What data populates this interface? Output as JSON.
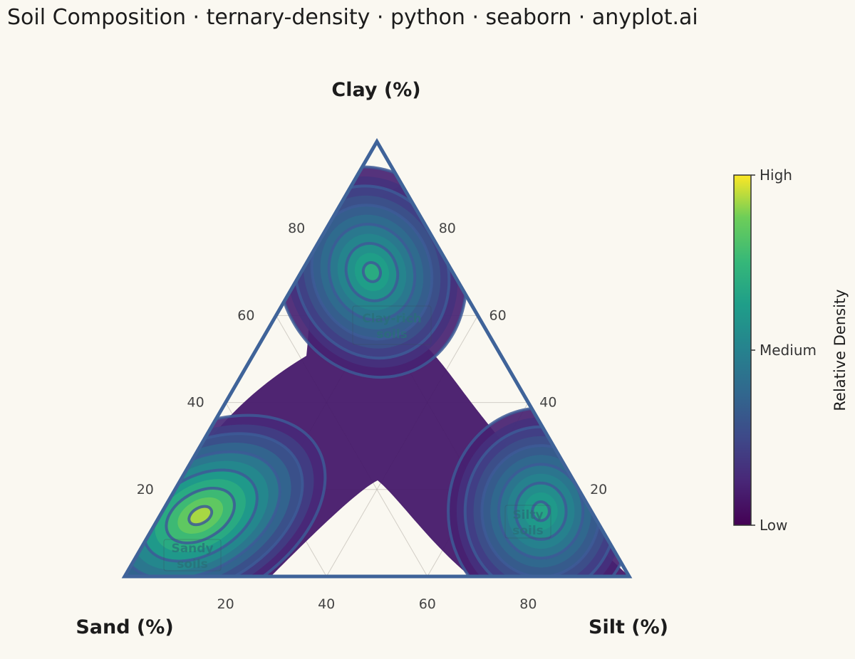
{
  "title": "Soil Composition · ternary-density · python · seaborn · anyplot.ai",
  "chart_data": {
    "type": "heatmap",
    "subtype": "ternary-density",
    "title": "Soil Composition · ternary-density · python · seaborn · anyplot.ai",
    "axes": {
      "top": {
        "label": "Clay (%)"
      },
      "left": {
        "label": "Sand (%)"
      },
      "right": {
        "label": "Silt (%)"
      }
    },
    "ticks": {
      "bottom": [
        "20",
        "40",
        "60",
        "80"
      ],
      "left": [
        "20",
        "40",
        "60",
        "80"
      ],
      "right": [
        "20",
        "40",
        "60",
        "80"
      ]
    },
    "grid": true,
    "colormap": "viridis",
    "colorbar": {
      "title": "Relative Density",
      "ticks": [
        "Low",
        "Medium",
        "High"
      ]
    },
    "clusters": [
      {
        "name": "Sandy soils",
        "sand": 78,
        "silt": 8,
        "clay": 14,
        "peak": 0.93
      },
      {
        "name": "Clay-rich soils",
        "sand": 16,
        "silt": 14,
        "clay": 70,
        "peak": 0.68
      },
      {
        "name": "Silty soils",
        "sand": 10,
        "silt": 75,
        "clay": 15,
        "peak": 0.65
      }
    ],
    "region_labels": [
      "Sandy soils",
      "Clay-rich soils",
      "Silty soils"
    ]
  }
}
